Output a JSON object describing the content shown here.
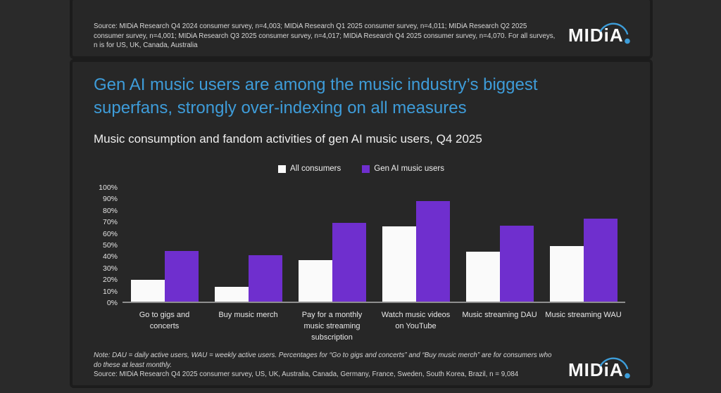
{
  "brand": {
    "logo_text": "MIDiA",
    "logo_blue": "#3d9dd9"
  },
  "header": {
    "source_text": "Source: MIDiA Research Q4 2024 consumer survey, n=4,003; MIDiA Research Q1 2025 consumer survey, n=4,011; MIDiA Research Q2 2025 consumer survey, n=4,001; MIDiA Research Q3 2025 consumer survey, n=4,017; MIDiA Research Q4 2025 consumer survey, n=4,070. For all surveys, n is for US, UK, Canada, Australia"
  },
  "main": {
    "title": "Gen AI music users are among the music industry’s biggest superfans, strongly over-indexing on all measures",
    "subtitle": "Music consumption and fandom activities of gen AI music users, Q4 2025",
    "note_text": "Note: DAU = daily active users, WAU = weekly active users. Percentages for “Go to gigs and concerts” and “Buy music merch” are for consumers who do these at least monthly.",
    "source_text": "Source: MIDiA Research Q4 2025 consumer survey, US, UK, Australia, Canada, Germany, France, Sweden, South Korea, Brazil, n = 9,084"
  },
  "chart_data": {
    "type": "bar",
    "title": "Music consumption and fandom activities of gen AI music users, Q4 2025",
    "categories": [
      "Go to gigs and concerts",
      "Buy music merch",
      "Pay for a monthly music streaming subscription",
      "Watch music videos on YouTube",
      "Music streaming DAU",
      "Music streaming WAU"
    ],
    "series": [
      {
        "name": "All consumers",
        "color": "#fafafa",
        "values": [
          19,
          13,
          36,
          65,
          43,
          48
        ]
      },
      {
        "name": "Gen AI music users",
        "color": "#6f2fce",
        "values": [
          44,
          40,
          68,
          87,
          66,
          72
        ]
      }
    ],
    "xlabel": "",
    "ylabel": "",
    "ylim": [
      0,
      100
    ],
    "ytick_step": 10,
    "ytick_format": "percent",
    "grid": false,
    "legend_position": "top-center"
  },
  "colors": {
    "title_blue": "#3e9cd9",
    "bar_white": "#fafafa",
    "bar_purple": "#6f2fce",
    "card_bg": "#272727",
    "page_bg": "#2a2a2a",
    "axis_line": "#8e8e8e"
  }
}
